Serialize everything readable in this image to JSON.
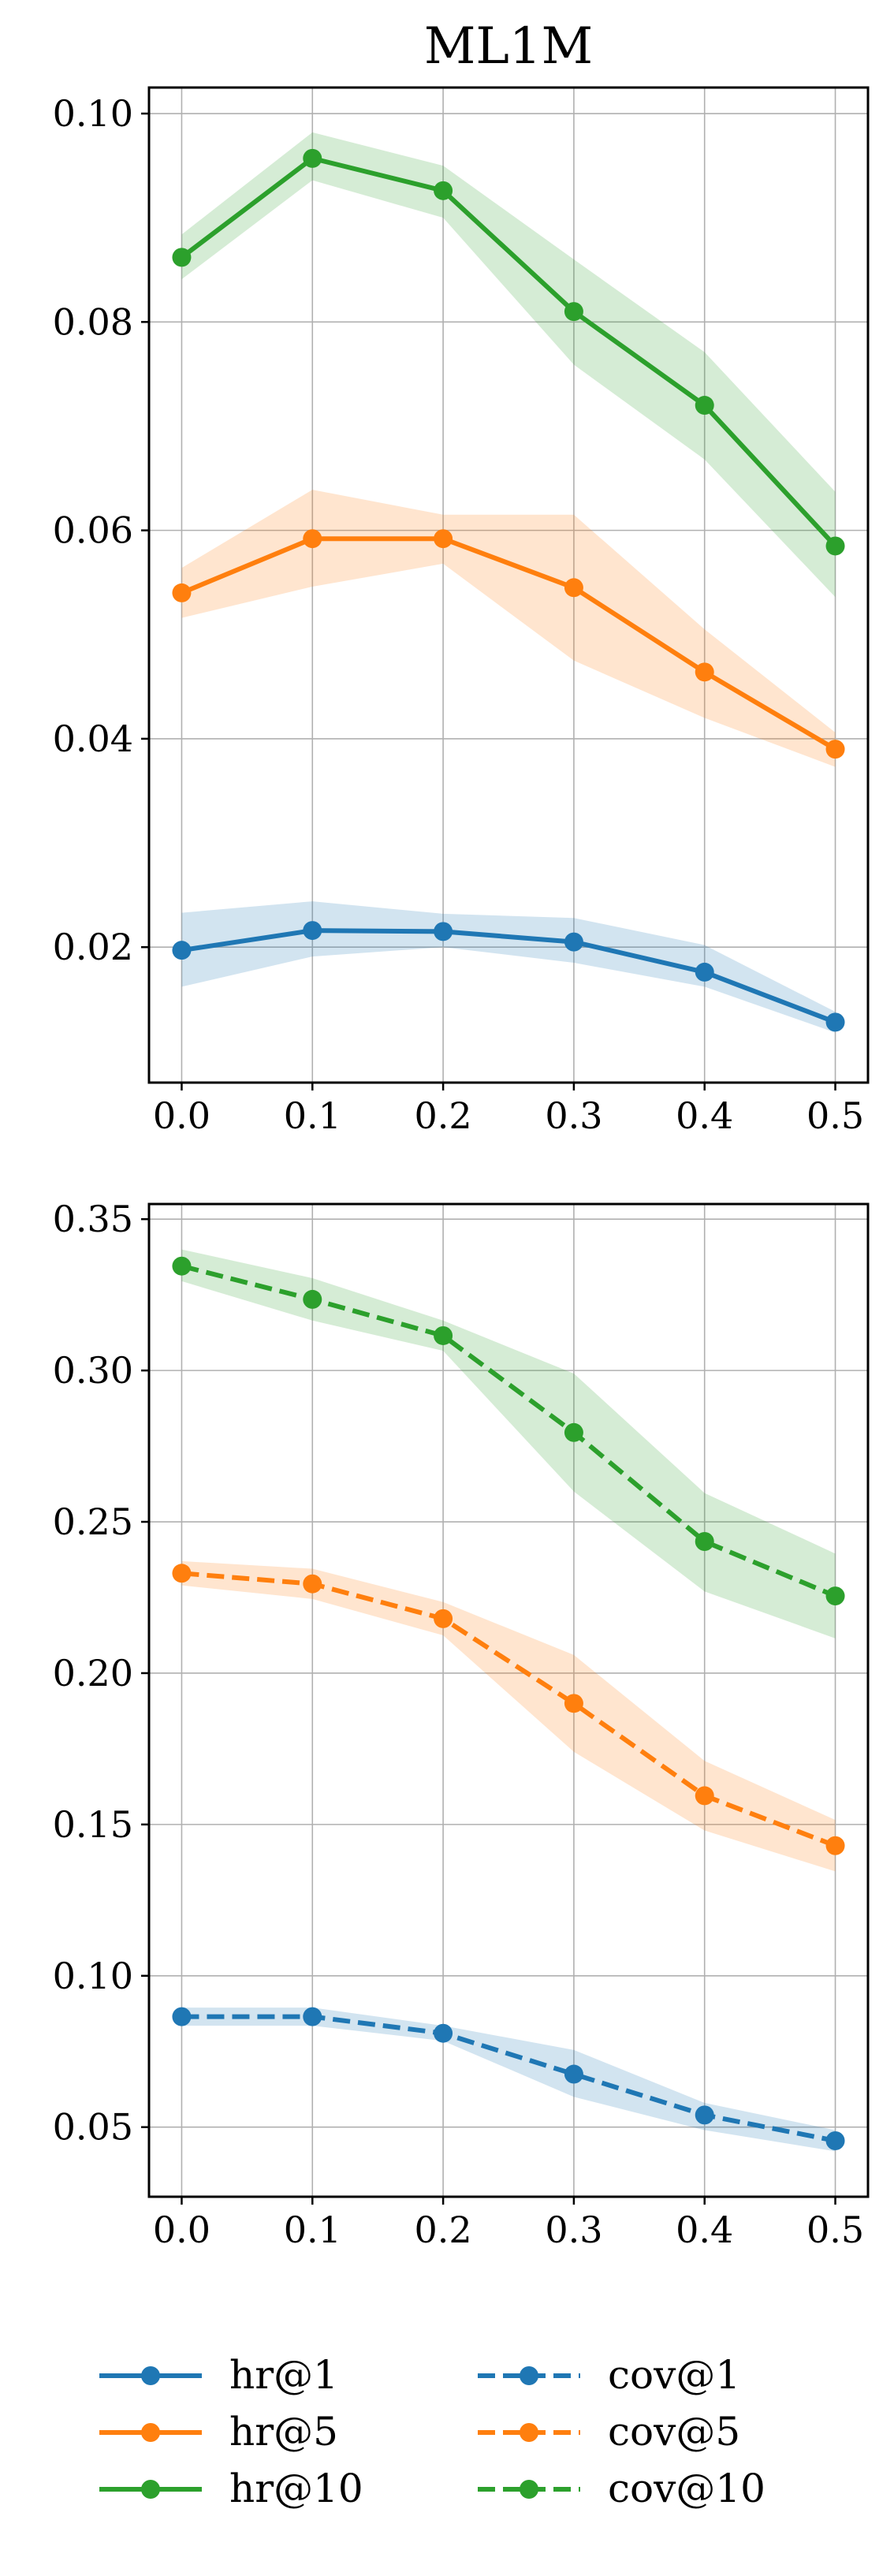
{
  "chart_data": [
    {
      "type": "line",
      "title": "ML1M",
      "xlabel": "",
      "ylabel": "",
      "xlim": [
        -0.025,
        0.525
      ],
      "ylim": [
        0.007,
        0.1025
      ],
      "x_ticks": [
        "0.0",
        "0.1",
        "0.2",
        "0.3",
        "0.4",
        "0.5"
      ],
      "y_ticks": [
        "0.02",
        "0.04",
        "0.06",
        "0.08",
        "0.10"
      ],
      "y_tick_values": [
        0.02,
        0.04,
        0.06,
        0.08,
        0.1
      ],
      "grid": true,
      "x": [
        0.0,
        0.1,
        0.2,
        0.3,
        0.4,
        0.5
      ],
      "series": [
        {
          "name": "hr@1",
          "color": "#1f77b4",
          "linestyle": "solid",
          "values": [
            0.0197,
            0.0216,
            0.0215,
            0.0205,
            0.0176,
            0.0128
          ],
          "lower": [
            0.0162,
            0.0191,
            0.02,
            0.0185,
            0.0162,
            0.0118
          ],
          "upper": [
            0.0233,
            0.0244,
            0.0232,
            0.0228,
            0.0202,
            0.0138
          ]
        },
        {
          "name": "hr@5",
          "color": "#ff7f0e",
          "linestyle": "solid",
          "values": [
            0.054,
            0.0592,
            0.0592,
            0.0545,
            0.0464,
            0.039
          ],
          "lower": [
            0.0516,
            0.0546,
            0.0568,
            0.0475,
            0.042,
            0.0373
          ],
          "upper": [
            0.0564,
            0.0639,
            0.0615,
            0.0615,
            0.0505,
            0.0406
          ]
        },
        {
          "name": "hr@10",
          "color": "#2ca02c",
          "linestyle": "solid",
          "values": [
            0.0862,
            0.0957,
            0.0926,
            0.081,
            0.072,
            0.0585
          ],
          "lower": [
            0.0841,
            0.0936,
            0.09,
            0.0759,
            0.0668,
            0.0536
          ],
          "upper": [
            0.0884,
            0.0982,
            0.095,
            0.086,
            0.0771,
            0.0637
          ]
        }
      ]
    },
    {
      "type": "line",
      "title": "",
      "xlabel": "",
      "ylabel": "",
      "xlim": [
        -0.025,
        0.525
      ],
      "ylim": [
        0.027,
        0.355
      ],
      "x_ticks": [
        "0.0",
        "0.1",
        "0.2",
        "0.3",
        "0.4",
        "0.5"
      ],
      "y_ticks": [
        "0.05",
        "0.10",
        "0.15",
        "0.20",
        "0.25",
        "0.30",
        "0.35"
      ],
      "y_tick_values": [
        0.05,
        0.1,
        0.15,
        0.2,
        0.25,
        0.3,
        0.35
      ],
      "grid": true,
      "x": [
        0.0,
        0.1,
        0.2,
        0.3,
        0.4,
        0.5
      ],
      "series": [
        {
          "name": "cov@1",
          "color": "#1f77b4",
          "linestyle": "dashed",
          "values": [
            0.0865,
            0.0865,
            0.081,
            0.0675,
            0.054,
            0.0455
          ],
          "lower": [
            0.0835,
            0.0835,
            0.0785,
            0.06,
            0.049,
            0.042
          ],
          "upper": [
            0.0895,
            0.0895,
            0.0835,
            0.0755,
            0.058,
            0.049
          ]
        },
        {
          "name": "cov@5",
          "color": "#ff7f0e",
          "linestyle": "dashed",
          "values": [
            0.233,
            0.2295,
            0.218,
            0.19,
            0.1595,
            0.143
          ],
          "lower": [
            0.229,
            0.2245,
            0.2125,
            0.174,
            0.148,
            0.1345
          ],
          "upper": [
            0.237,
            0.2345,
            0.2235,
            0.206,
            0.171,
            0.1515
          ]
        },
        {
          "name": "cov@10",
          "color": "#2ca02c",
          "linestyle": "dashed",
          "values": [
            0.3345,
            0.3235,
            0.3115,
            0.2795,
            0.2435,
            0.2255
          ],
          "lower": [
            0.3295,
            0.3165,
            0.3065,
            0.26,
            0.227,
            0.2115
          ],
          "upper": [
            0.34,
            0.3305,
            0.3165,
            0.299,
            0.2595,
            0.2395
          ]
        }
      ]
    }
  ],
  "legend": {
    "placement": "bottom",
    "entries": [
      {
        "label": "hr@1",
        "color": "#1f77b4",
        "linestyle": "solid"
      },
      {
        "label": "hr@5",
        "color": "#ff7f0e",
        "linestyle": "solid"
      },
      {
        "label": "hr@10",
        "color": "#2ca02c",
        "linestyle": "solid"
      },
      {
        "label": "cov@1",
        "color": "#1f77b4",
        "linestyle": "dashed"
      },
      {
        "label": "cov@5",
        "color": "#ff7f0e",
        "linestyle": "dashed"
      },
      {
        "label": "cov@10",
        "color": "#2ca02c",
        "linestyle": "dashed"
      }
    ]
  }
}
